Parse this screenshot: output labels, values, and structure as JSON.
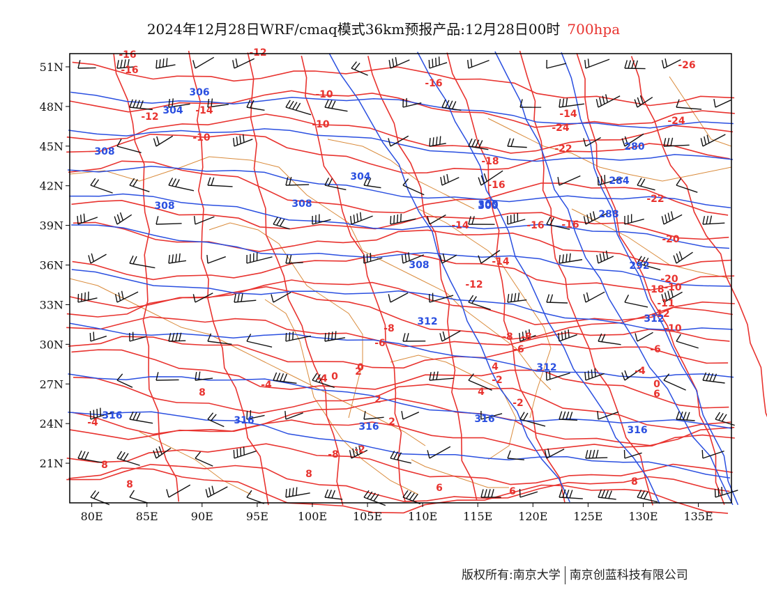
{
  "title": {
    "main": "2024年12月28日WRF/cmaq模式36km预报产品:12月28日00时",
    "level": "700hpa"
  },
  "colors": {
    "temperature": "#e8332f",
    "geopotential": "#2a4fe0",
    "border": "#d98a3a",
    "barb": "#111111"
  },
  "axes": {
    "lon_ticks": [
      "80E",
      "85E",
      "90E",
      "95E",
      "100E",
      "105E",
      "110E",
      "115E",
      "120E",
      "125E",
      "130E",
      "135E"
    ],
    "lat_ticks": [
      "51N",
      "48N",
      "45N",
      "42N",
      "39N",
      "36N",
      "33N",
      "30N",
      "27N",
      "24N",
      "21N"
    ],
    "lon_range": [
      78,
      138
    ],
    "lat_range": [
      18,
      52
    ]
  },
  "temperature_labels": [
    "-16",
    "-16",
    "-12",
    "-12",
    "-10",
    "-10",
    "-14",
    "-16",
    "-10",
    "-18",
    "-16",
    "-14",
    "-14",
    "-16",
    "-16",
    "-12",
    "-14",
    "-24",
    "-22",
    "-20",
    "-26",
    "-24",
    "-22",
    "-20",
    "-18",
    "-10",
    "-11",
    "-12",
    "-10",
    "-8",
    "-8",
    "-6",
    "-8",
    "-6",
    "-6",
    "-4",
    "-4",
    "-2",
    "-2",
    "0",
    "0",
    "2",
    "2",
    "4",
    "4",
    "6",
    "6",
    "6",
    "8",
    "8",
    "8",
    "8",
    "8",
    "-4",
    "-2",
    "0",
    "2",
    "-4",
    "-8"
  ],
  "height_labels": [
    "306",
    "304",
    "308",
    "308",
    "300",
    "304",
    "308",
    "300",
    "288",
    "284",
    "280",
    "292",
    "308",
    "312",
    "316",
    "316",
    "316",
    "316",
    "316",
    "312",
    "312"
  ],
  "footer": {
    "left": "版权所有:南京大学",
    "right": "南京创蓝科技有限公司"
  }
}
